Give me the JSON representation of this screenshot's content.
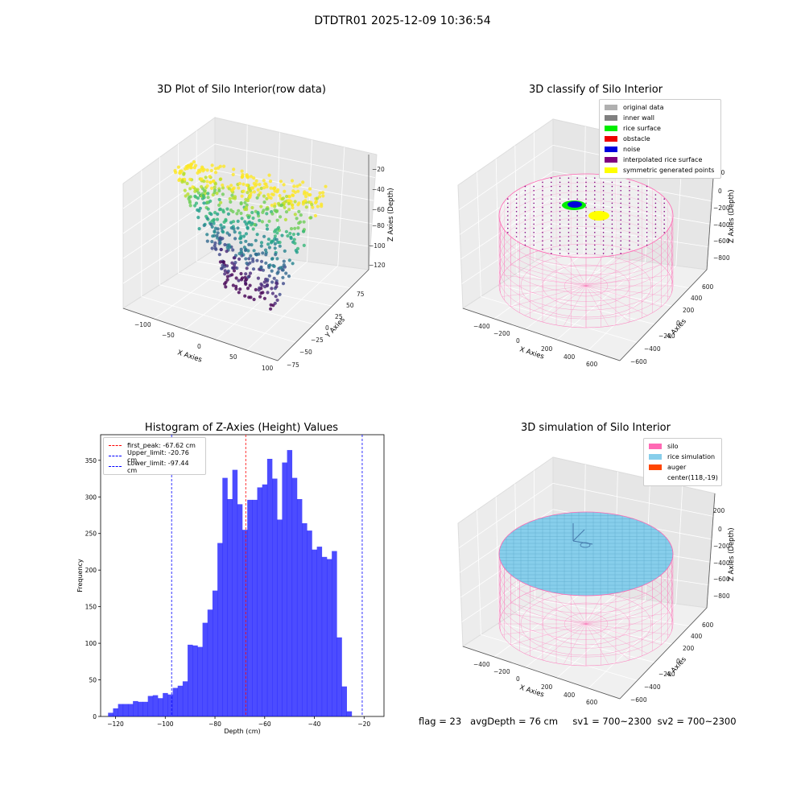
{
  "suptitle": "DTDTR01 2025-12-09 10:36:54",
  "panels": {
    "raw": {
      "title": "3D Plot of Silo Interior(row data)",
      "xlabel": "X Axies",
      "ylabel": "Y Axies",
      "zlabel": "Z Axies (Depth)",
      "xticks": [
        "−100",
        "−50",
        "0",
        "50",
        "100"
      ],
      "yticks": [
        "−75",
        "−50",
        "−25",
        "0",
        "25",
        "50",
        "75"
      ],
      "zticks": [
        "−20",
        "−40",
        "−60",
        "−80",
        "−100",
        "−120"
      ]
    },
    "classify": {
      "title": "3D classify of Silo Interior",
      "xlabel": "X Axies",
      "ylabel": "Y Axies",
      "zlabel": "Z Axies (Depth)",
      "xticks": [
        "−400",
        "−200",
        "0",
        "200",
        "400",
        "600"
      ],
      "yticks": [
        "−600",
        "−400",
        "−200",
        "0",
        "200",
        "400",
        "600"
      ],
      "zticks": [
        "200",
        "0",
        "−200",
        "−400",
        "−600",
        "−800"
      ],
      "legend": [
        {
          "label": "original data",
          "color": "#b0b0b0"
        },
        {
          "label": "inner wall",
          "color": "#808080"
        },
        {
          "label": "rice surface",
          "color": "#00ee00"
        },
        {
          "label": "obstacle",
          "color": "#ee0000"
        },
        {
          "label": "noise",
          "color": "#0000dd"
        },
        {
          "label": "interpolated rice surface",
          "color": "#800080"
        },
        {
          "label": "symmetric generated points",
          "color": "#ffff00"
        }
      ]
    },
    "simulation": {
      "title": "3D simulation of Silo Interior",
      "xlabel": "X Axies",
      "ylabel": "Y Axies",
      "zlabel": "Z Axies (Depth)",
      "xticks": [
        "−400",
        "−200",
        "0",
        "200",
        "400",
        "600"
      ],
      "yticks": [
        "−600",
        "−400",
        "−200",
        "0",
        "200",
        "400",
        "600"
      ],
      "zticks": [
        "200",
        "0",
        "−200",
        "−400",
        "−600",
        "−800"
      ],
      "legend": [
        {
          "label": "silo",
          "color": "#ff69b4"
        },
        {
          "label": "rice simulation",
          "color": "#87ceeb"
        },
        {
          "label": "auger",
          "color": "#ff4500"
        },
        {
          "label": "center(118,-19)",
          "color": ""
        }
      ]
    }
  },
  "status": {
    "flag": "flag = 23",
    "avg": "avgDepth = 76 cm",
    "sv1": "sv1 = 700~2300",
    "sv2": "sv2 = 700~2300"
  },
  "chart_data": [
    {
      "type": "scatter",
      "title": "3D Plot of Silo Interior(row data)",
      "xlabel": "X Axies",
      "ylabel": "Y Axies",
      "zlabel": "Z Axies (Depth)",
      "xlim": [
        -115,
        105
      ],
      "ylim": [
        -80,
        90
      ],
      "zlim": [
        -130,
        -15
      ]
    },
    {
      "type": "scatter",
      "title": "3D classify of Silo Interior",
      "xlabel": "X Axies",
      "ylabel": "Y Axies",
      "zlabel": "Z Axies (Depth)",
      "xlim": [
        -500,
        700
      ],
      "ylim": [
        -700,
        700
      ],
      "zlim": [
        -950,
        250
      ],
      "legend_position": "top-right"
    },
    {
      "type": "bar",
      "title": "Histogram of Z-Axies (Height) Values",
      "xlabel": "Depth (cm)",
      "ylabel": "Frequency",
      "xlim": [
        -126,
        -12
      ],
      "ylim": [
        0,
        385
      ],
      "xticks": [
        -120,
        -100,
        -80,
        -60,
        -40,
        -20
      ],
      "yticks": [
        0,
        50,
        100,
        150,
        200,
        250,
        300,
        350
      ],
      "bin_width": 2,
      "bin_start": -123,
      "values": [
        5,
        11,
        17,
        17,
        17,
        21,
        20,
        20,
        28,
        29,
        25,
        32,
        30,
        39,
        42,
        48,
        98,
        97,
        95,
        128,
        146,
        172,
        237,
        326,
        297,
        337,
        290,
        255,
        296,
        296,
        313,
        317,
        352,
        325,
        269,
        347,
        364,
        326,
        297,
        264,
        254,
        228,
        232,
        218,
        215,
        226,
        108,
        41,
        7
      ],
      "color": "#0000ff",
      "lines": [
        {
          "label": "first_peak: -67.62 cm",
          "x": -67.62,
          "color": "#ff0000"
        },
        {
          "label": "Upper_limit: -20.76 cm",
          "x": -20.76,
          "color": "#0000ff"
        },
        {
          "label": "Lower_limit: -97.44 cm",
          "x": -97.44,
          "color": "#0000ff"
        }
      ],
      "legend_position": "top-left"
    },
    {
      "type": "scatter",
      "title": "3D simulation of Silo Interior",
      "xlabel": "X Axies",
      "ylabel": "Y Axies",
      "zlabel": "Z Axies (Depth)",
      "xlim": [
        -500,
        700
      ],
      "ylim": [
        -700,
        700
      ],
      "zlim": [
        -950,
        250
      ],
      "legend_position": "top-right"
    }
  ]
}
